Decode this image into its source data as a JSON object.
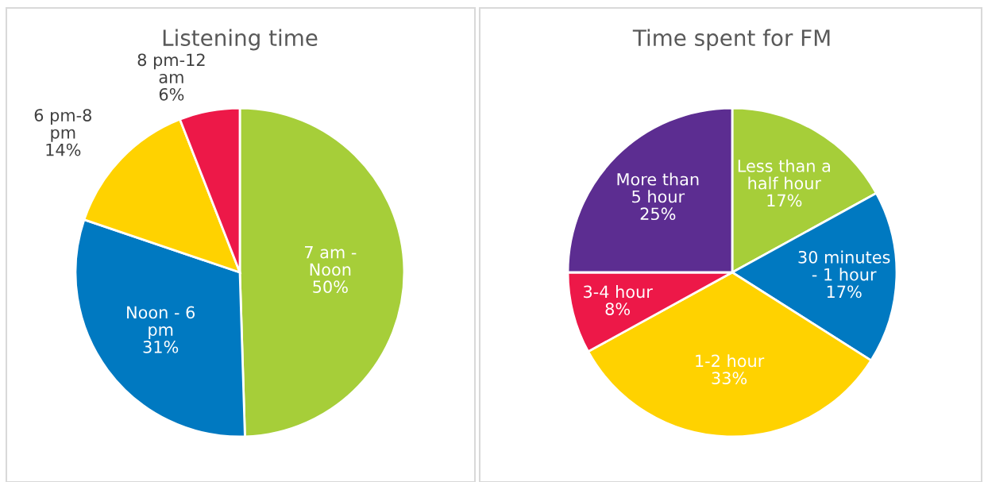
{
  "chart_data": [
    {
      "type": "pie",
      "title": "Listening time",
      "categories": [
        "7 am -\nNoon",
        "Noon - 6\npm",
        "6 pm-8\npm",
        "8 pm-12\nam"
      ],
      "values": [
        50,
        31,
        14,
        6
      ],
      "value_labels": [
        "50%",
        "31%",
        "14%",
        "6%"
      ],
      "colors": [
        "#a6ce39",
        "#0079c1",
        "#ffd200",
        "#ed1848"
      ]
    },
    {
      "type": "pie",
      "title": "Time spent for FM",
      "categories": [
        "Less than a\nhalf hour",
        "30 minutes\n- 1 hour",
        "1-2 hour",
        "3-4 hour",
        "More than\n5 hour"
      ],
      "values": [
        17,
        17,
        33,
        8,
        25
      ],
      "value_labels": [
        "17%",
        "17%",
        "33%",
        "8%",
        "25%"
      ],
      "colors": [
        "#a6ce39",
        "#0079c1",
        "#ffd200",
        "#ed1848",
        "#5c2d91"
      ]
    }
  ]
}
